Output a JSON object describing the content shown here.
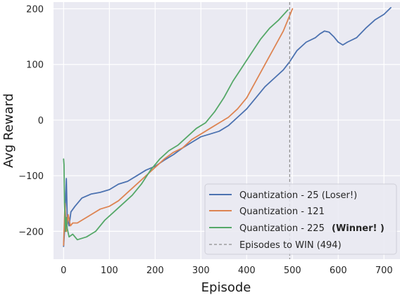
{
  "chart_data": {
    "type": "line",
    "xlabel": "Episode",
    "ylabel": "Avg Reward",
    "xlim": [
      -22,
      735
    ],
    "ylim": [
      -250,
      212
    ],
    "xticks": [
      0,
      100,
      200,
      300,
      400,
      500,
      600,
      700
    ],
    "yticks": [
      -200,
      -100,
      0,
      100,
      200
    ],
    "grid": true,
    "legend_position": "lower right",
    "series": [
      {
        "name": "Quantization - 25 (Loser!)",
        "color": "#4c72b0",
        "x": [
          0,
          2,
          4,
          6,
          8,
          12,
          16,
          25,
          40,
          60,
          80,
          100,
          120,
          140,
          160,
          180,
          200,
          220,
          240,
          260,
          280,
          300,
          320,
          340,
          360,
          380,
          400,
          420,
          440,
          460,
          480,
          494,
          510,
          530,
          550,
          560,
          570,
          580,
          590,
          600,
          610,
          620,
          640,
          660,
          680,
          700,
          715
        ],
        "y": [
          -227,
          -200,
          -150,
          -105,
          -175,
          -190,
          -165,
          -155,
          -140,
          -133,
          -130,
          -125,
          -115,
          -110,
          -100,
          -90,
          -83,
          -72,
          -62,
          -50,
          -40,
          -30,
          -25,
          -20,
          -10,
          5,
          20,
          40,
          60,
          75,
          90,
          105,
          125,
          140,
          148,
          155,
          160,
          158,
          150,
          140,
          135,
          140,
          148,
          165,
          180,
          190,
          202
        ]
      },
      {
        "name": "Quantization - 121",
        "color": "#dd8452",
        "x": [
          0,
          3,
          6,
          10,
          15,
          20,
          30,
          40,
          60,
          80,
          100,
          120,
          140,
          160,
          180,
          200,
          220,
          240,
          260,
          280,
          300,
          320,
          340,
          360,
          380,
          400,
          420,
          440,
          460,
          480,
          500
        ],
        "y": [
          -225,
          -150,
          -200,
          -170,
          -190,
          -185,
          -185,
          -180,
          -170,
          -160,
          -155,
          -145,
          -130,
          -115,
          -100,
          -85,
          -70,
          -58,
          -50,
          -35,
          -25,
          -15,
          -5,
          5,
          20,
          40,
          70,
          100,
          130,
          160,
          200
        ]
      },
      {
        "name": "Quantization - 225",
        "bold_suffix": "(Winner! )",
        "color": "#55a868",
        "x": [
          0,
          1,
          2,
          4,
          6,
          8,
          12,
          20,
          30,
          50,
          70,
          90,
          110,
          130,
          150,
          170,
          190,
          210,
          230,
          250,
          270,
          290,
          310,
          330,
          350,
          370,
          390,
          410,
          430,
          450,
          470,
          490
        ],
        "y": [
          -70,
          -80,
          -150,
          -200,
          -175,
          -195,
          -210,
          -205,
          -215,
          -210,
          -200,
          -180,
          -165,
          -150,
          -135,
          -115,
          -90,
          -70,
          -55,
          -45,
          -30,
          -15,
          -5,
          15,
          40,
          70,
          95,
          120,
          145,
          165,
          180,
          198
        ]
      }
    ],
    "vline": {
      "x": 494,
      "label": "Episodes to WIN (494)",
      "color": "#8c8c8c"
    }
  }
}
